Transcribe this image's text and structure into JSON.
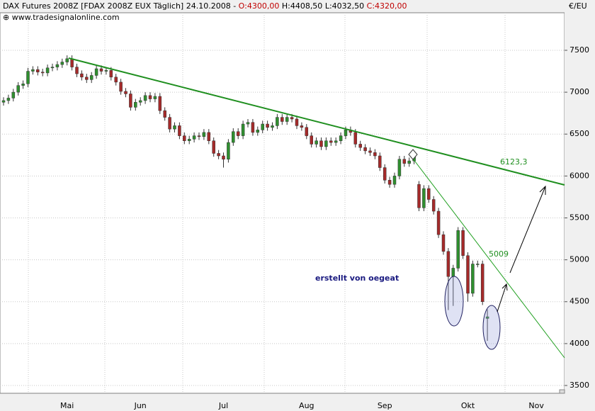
{
  "chart_data": {
    "type": "candlestick",
    "title": "DAX Futures 2008Z [FDAX 2008Z EUX  Täglich] 24.10.2008 -",
    "ohlc_labels": [
      "O:4300,00",
      "H:4408,50",
      "L:4032,50",
      "C:4320,00"
    ],
    "source": "www.tradesignalonline.com",
    "y_unit": "€/EU",
    "annotations": [
      "erstellt von oegeat",
      "6123,3",
      "5009"
    ],
    "up_color": "#2f8f2f",
    "down_color": "#a52a2a",
    "grid": true,
    "ylim": [
      3407,
      7948
    ],
    "yticks": [
      3500,
      4000,
      4500,
      5000,
      5500,
      6000,
      6500,
      7000,
      7500
    ],
    "categories": [
      null,
      null,
      null,
      null,
      null,
      null,
      null,
      null,
      null,
      null,
      null,
      null,
      null,
      "Mai",
      null,
      null,
      null,
      null,
      null,
      null,
      null,
      null,
      null,
      null,
      null,
      null,
      null,
      null,
      "Jun",
      null,
      null,
      null,
      null,
      null,
      null,
      null,
      null,
      null,
      null,
      null,
      null,
      null,
      null,
      null,
      null,
      "Jul",
      null,
      null,
      null,
      null,
      null,
      null,
      null,
      null,
      null,
      null,
      null,
      null,
      null,
      null,
      null,
      null,
      "Aug",
      null,
      null,
      null,
      null,
      null,
      null,
      null,
      null,
      null,
      null,
      null,
      null,
      null,
      null,
      null,
      "Sep",
      null,
      null,
      null,
      null,
      null,
      null,
      null,
      null,
      null,
      null,
      null,
      null,
      null,
      null,
      null,
      null,
      "Okt",
      null,
      null,
      null,
      null,
      null,
      null,
      null,
      null,
      null,
      null,
      null,
      null,
      null,
      "Nov",
      null,
      null
    ],
    "open": [
      6880,
      6900,
      6930,
      7000,
      7080,
      7100,
      7250,
      7270,
      7240,
      7230,
      7290,
      7300,
      7330,
      7360,
      7400,
      7300,
      7220,
      7180,
      7150,
      7200,
      7280,
      7250,
      7260,
      7180,
      7120,
      7010,
      6980,
      6820,
      6880,
      6900,
      6960,
      6920,
      6950,
      6780,
      6700,
      6560,
      6600,
      6480,
      6420,
      6440,
      6480,
      6470,
      6520,
      6420,
      6270,
      6240,
      6200,
      6400,
      6530,
      6480,
      6620,
      6640,
      6520,
      6550,
      6620,
      6580,
      6600,
      6700,
      6650,
      6700,
      6680,
      6600,
      6580,
      6480,
      6380,
      6420,
      6350,
      6420,
      6400,
      6420,
      6480,
      6550,
      6520,
      6380,
      6340,
      6300,
      6280,
      6240,
      6100,
      5950,
      5900,
      6000,
      6200,
      6150,
      6180,
      5900,
      5620,
      5850,
      5720,
      5580,
      5300,
      5100,
      4800,
      4900,
      5350,
      5050,
      4600,
      4950,
      4950,
      4300,
      null,
      null,
      null,
      null,
      null,
      null,
      null,
      null,
      null,
      null,
      null,
      null
    ],
    "high": [
      6940,
      6970,
      7040,
      7120,
      7140,
      7290,
      7310,
      7310,
      7280,
      7330,
      7340,
      7370,
      7400,
      7440,
      7440,
      7340,
      7260,
      7220,
      7240,
      7320,
      7320,
      7300,
      7300,
      7220,
      7160,
      7050,
      7020,
      6920,
      6940,
      7000,
      7000,
      6990,
      6990,
      6820,
      6740,
      6640,
      6640,
      6520,
      6480,
      6520,
      6520,
      6560,
      6560,
      6460,
      6310,
      6280,
      6440,
      6570,
      6570,
      6660,
      6680,
      6680,
      6590,
      6660,
      6660,
      6640,
      6740,
      6740,
      6740,
      6740,
      6720,
      6640,
      6620,
      6520,
      6460,
      6460,
      6460,
      6460,
      6460,
      6520,
      6590,
      6590,
      6560,
      6420,
      6380,
      6340,
      6320,
      6280,
      6140,
      5990,
      6040,
      6240,
      6240,
      6220,
      6270,
      5940,
      5890,
      5890,
      5760,
      5620,
      5340,
      5140,
      4940,
      5390,
      5390,
      5090,
      4990,
      4990,
      4990,
      4408.5,
      null,
      null,
      null,
      null,
      null,
      null,
      null,
      null,
      null,
      null,
      null,
      null
    ],
    "low": [
      6840,
      6860,
      6890,
      6960,
      7040,
      7060,
      7210,
      7200,
      7190,
      7190,
      7250,
      7260,
      7290,
      7320,
      7260,
      7180,
      7140,
      7110,
      7110,
      7160,
      7210,
      7210,
      7140,
      7080,
      6970,
      6940,
      6780,
      6780,
      6840,
      6860,
      6880,
      6880,
      6740,
      6660,
      6520,
      6520,
      6440,
      6380,
      6380,
      6400,
      6430,
      6430,
      6380,
      6230,
      6200,
      6100,
      6160,
      6360,
      6440,
      6440,
      6580,
      6480,
      6480,
      6510,
      6540,
      6540,
      6560,
      6610,
      6610,
      6640,
      6560,
      6540,
      6440,
      6340,
      6340,
      6310,
      6310,
      6360,
      6360,
      6380,
      6440,
      6480,
      6340,
      6300,
      6260,
      6240,
      6200,
      6060,
      5910,
      5860,
      5860,
      5960,
      6110,
      6110,
      6140,
      5580,
      5580,
      5680,
      5540,
      5260,
      5060,
      4400,
      4450,
      4860,
      5010,
      4500,
      4560,
      4910,
      4460,
      4032.5,
      null,
      null,
      null,
      null,
      null,
      null,
      null,
      null,
      null,
      null,
      null,
      null
    ],
    "close": [
      6900,
      6930,
      7000,
      7080,
      7100,
      7250,
      7270,
      7240,
      7230,
      7290,
      7300,
      7330,
      7360,
      7400,
      7300,
      7220,
      7180,
      7150,
      7200,
      7280,
      7250,
      7260,
      7180,
      7120,
      7010,
      6980,
      6820,
      6880,
      6900,
      6960,
      6920,
      6950,
      6780,
      6700,
      6560,
      6600,
      6480,
      6420,
      6440,
      6480,
      6470,
      6520,
      6420,
      6270,
      6240,
      6200,
      6400,
      6530,
      6480,
      6620,
      6640,
      6520,
      6550,
      6620,
      6580,
      6600,
      6700,
      6650,
      6700,
      6680,
      6600,
      6580,
      6480,
      6380,
      6420,
      6350,
      6420,
      6400,
      6420,
      6480,
      6550,
      6520,
      6380,
      6340,
      6300,
      6280,
      6240,
      6100,
      5950,
      5900,
      6000,
      6200,
      6150,
      6180,
      6230,
      5620,
      5850,
      5720,
      5580,
      5300,
      5100,
      4800,
      4900,
      5350,
      5050,
      4600,
      4950,
      4950,
      4500,
      4320,
      null,
      null,
      null,
      null,
      null,
      null,
      null,
      null,
      null,
      null,
      null,
      null
    ]
  }
}
